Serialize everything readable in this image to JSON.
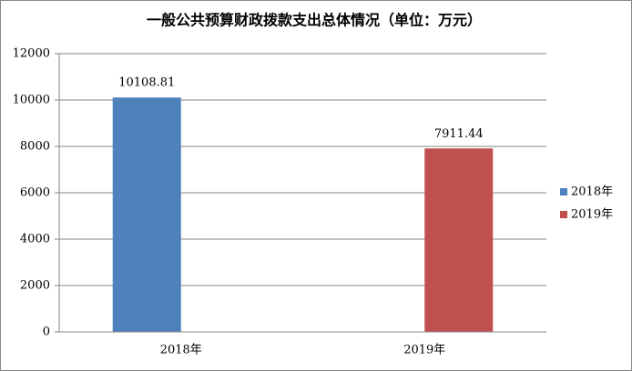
{
  "chart_data": {
    "type": "bar",
    "title": "一般公共预算财政拨款支出总体情况（单位：万元）",
    "categories": [
      "2018年",
      "2019年"
    ],
    "series": [
      {
        "name": "2018年",
        "color": "#4f81bd",
        "values": [
          10108.81,
          null
        ]
      },
      {
        "name": "2019年",
        "color": "#c0504d",
        "values": [
          null,
          7911.44
        ]
      }
    ],
    "ylim": [
      0,
      12000
    ],
    "yticks": [
      0,
      2000,
      4000,
      6000,
      8000,
      10000,
      12000
    ],
    "grid": true,
    "legend": "right"
  }
}
